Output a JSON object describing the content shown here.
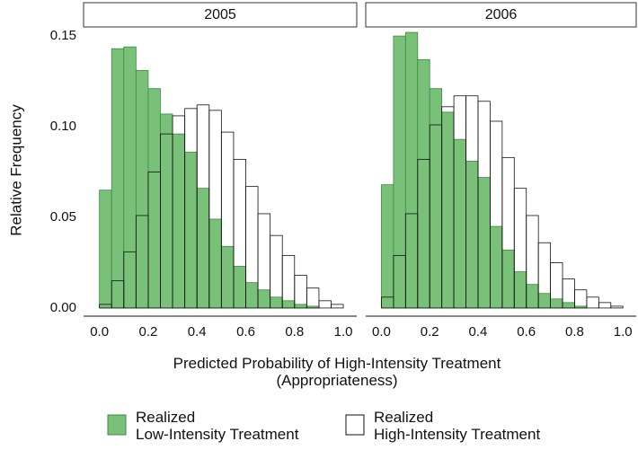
{
  "chart_data": [
    {
      "type": "histogram",
      "title": "2005",
      "ylabel": "Relative Frequency",
      "xlabel": "Predicted Probability of High-Intensity Treatment\n(Appropriateness)",
      "bins": [
        0,
        0.05,
        0.1,
        0.15,
        0.2,
        0.25,
        0.3,
        0.35,
        0.4,
        0.45,
        0.5,
        0.55,
        0.6,
        0.65,
        0.7,
        0.75,
        0.8,
        0.85,
        0.9,
        0.95,
        1.0
      ],
      "series": [
        {
          "name": "Realized\nLow-Intensity Treatment",
          "color": "#79c079",
          "values": [
            0.065,
            0.143,
            0.144,
            0.131,
            0.121,
            0.107,
            0.096,
            0.086,
            0.066,
            0.049,
            0.034,
            0.023,
            0.014,
            0.01,
            0.006,
            0.004,
            0.002,
            0.001,
            0,
            0
          ]
        },
        {
          "name": "Realized\nHigh-Intensity Treatment",
          "color": "#ffffff",
          "values": [
            0.002,
            0.015,
            0.031,
            0.051,
            0.075,
            0.096,
            0.106,
            0.11,
            0.112,
            0.109,
            0.097,
            0.082,
            0.067,
            0.052,
            0.04,
            0.029,
            0.018,
            0.011,
            0.004,
            0.002
          ]
        }
      ],
      "xlim": [
        -0.065,
        1.055
      ],
      "ylim": [
        -0.0045,
        0.155
      ],
      "xticks": [
        {
          "value": 0,
          "label": "0.0"
        },
        0.2,
        0.4,
        0.6,
        0.8,
        {
          "value": 1,
          "label": "1.0"
        }
      ],
      "yticks": [
        {
          "value": 0,
          "label": "0.00"
        },
        {
          "value": 0.05,
          "label": "0.05"
        },
        {
          "value": 0.1,
          "label": "0.10"
        },
        {
          "value": 0.15,
          "label": "0.15"
        }
      ]
    },
    {
      "type": "histogram",
      "title": "2006",
      "bins": [
        0,
        0.05,
        0.1,
        0.15,
        0.2,
        0.25,
        0.3,
        0.35,
        0.4,
        0.45,
        0.5,
        0.55,
        0.6,
        0.65,
        0.7,
        0.75,
        0.8,
        0.85,
        0.9,
        0.95,
        1.0
      ],
      "series": [
        {
          "color": "#79c079",
          "values": [
            0.068,
            0.15,
            0.152,
            0.137,
            0.121,
            0.108,
            0.093,
            0.081,
            0.072,
            0.045,
            0.032,
            0.02,
            0.013,
            0.008,
            0.005,
            0.003,
            0.001,
            0,
            0,
            0
          ]
        },
        {
          "color": "#ffffff",
          "values": [
            0.006,
            0.029,
            0.052,
            0.082,
            0.101,
            0.111,
            0.117,
            0.117,
            0.114,
            0.103,
            0.083,
            0.066,
            0.051,
            0.036,
            0.025,
            0.016,
            0.01,
            0.006,
            0.003,
            0.001
          ]
        }
      ],
      "xlim": [
        -0.065,
        1.055
      ],
      "ylim": [
        -0.0045,
        0.155
      ],
      "xticks": [
        {
          "value": 0,
          "label": "0.0"
        },
        0.2,
        0.4,
        0.6,
        0.8,
        {
          "value": 1,
          "label": "1.0"
        }
      ]
    }
  ]
}
